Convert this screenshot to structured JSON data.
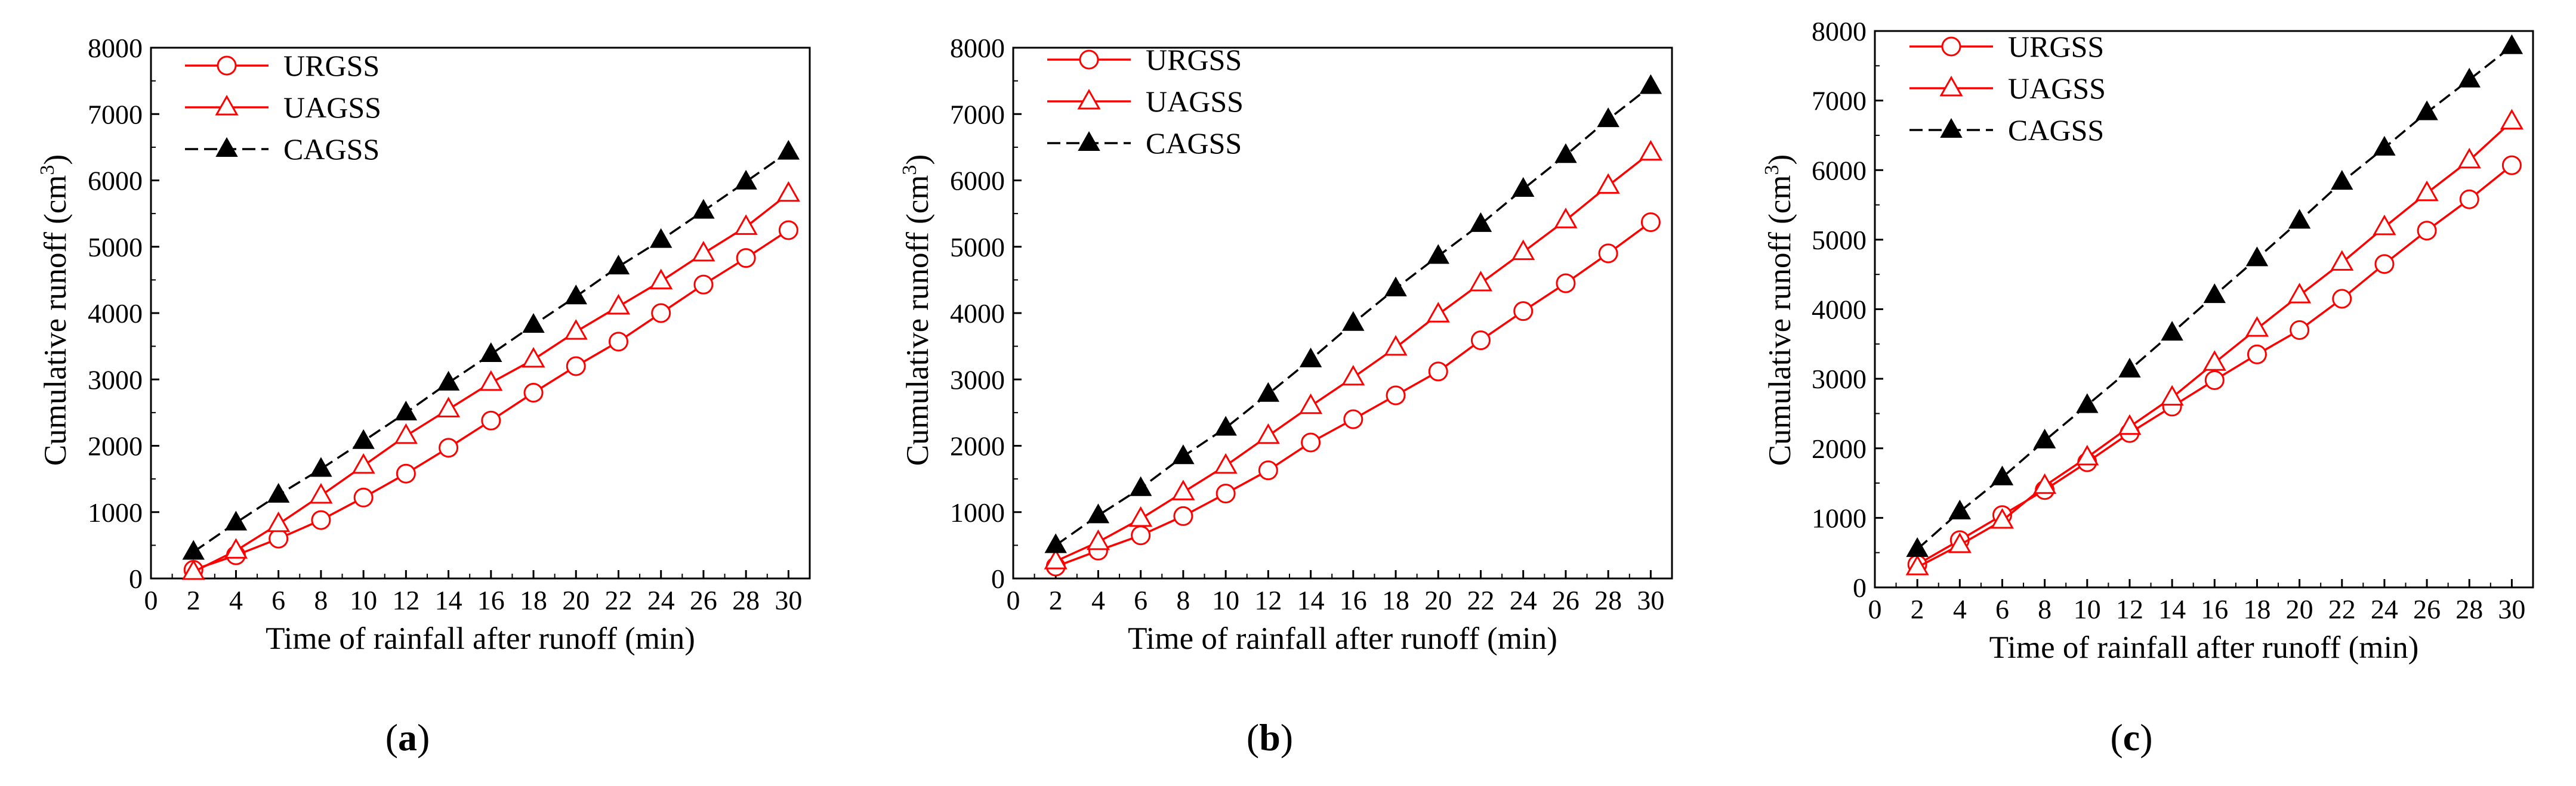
{
  "series_colors": {
    "URGSS": "#ff0000",
    "UAGSS": "#ff0000",
    "CAGSS": "#000000"
  },
  "chart_data": [
    {
      "type": "line",
      "panel": "a",
      "xlabel": "Time of rainfall after runoff (min)",
      "ylabel": "Cumulative runoff (cm",
      "ylabel_sup": "3",
      "ylabel_close": ")",
      "xlim": [
        0,
        31
      ],
      "ylim": [
        0,
        8000
      ],
      "xticks": [
        0,
        2,
        4,
        6,
        8,
        10,
        12,
        14,
        16,
        18,
        20,
        22,
        24,
        26,
        28,
        30
      ],
      "yticks": [
        0,
        1000,
        2000,
        3000,
        4000,
        5000,
        6000,
        7000,
        8000
      ],
      "x": [
        2,
        4,
        6,
        8,
        10,
        12,
        14,
        16,
        18,
        20,
        22,
        24,
        26,
        28,
        30
      ],
      "series": [
        {
          "name": "URGSS",
          "marker": "circle-open",
          "values": [
            130,
            350,
            600,
            880,
            1220,
            1580,
            1970,
            2380,
            2800,
            3200,
            3570,
            4000,
            4430,
            4830,
            5250
          ]
        },
        {
          "name": "UAGSS",
          "marker": "triangle-open",
          "values": [
            100,
            420,
            820,
            1250,
            1700,
            2150,
            2550,
            2950,
            3300,
            3720,
            4100,
            4480,
            4900,
            5300,
            5800
          ]
        },
        {
          "name": "CAGSS",
          "marker": "triangle-filled",
          "values": [
            400,
            840,
            1260,
            1650,
            2070,
            2500,
            2950,
            3380,
            3820,
            4250,
            4700,
            5100,
            5540,
            5980,
            6430
          ]
        }
      ]
    },
    {
      "type": "line",
      "panel": "b",
      "xlabel": "Time of rainfall after runoff (min)",
      "ylabel": "Cumulative runoff (cm",
      "ylabel_sup": "3",
      "ylabel_close": ")",
      "xlim": [
        0,
        31
      ],
      "ylim": [
        0,
        8000
      ],
      "xticks": [
        0,
        2,
        4,
        6,
        8,
        10,
        12,
        14,
        16,
        18,
        20,
        22,
        24,
        26,
        28,
        30
      ],
      "yticks": [
        0,
        1000,
        2000,
        3000,
        4000,
        5000,
        6000,
        7000,
        8000
      ],
      "x": [
        2,
        4,
        6,
        8,
        10,
        12,
        14,
        16,
        18,
        20,
        22,
        24,
        26,
        28,
        30
      ],
      "series": [
        {
          "name": "URGSS",
          "marker": "circle-open",
          "values": [
            180,
            420,
            650,
            940,
            1280,
            1630,
            2050,
            2400,
            2760,
            3120,
            3590,
            4030,
            4450,
            4900,
            5370
          ]
        },
        {
          "name": "UAGSS",
          "marker": "triangle-open",
          "values": [
            260,
            550,
            900,
            1300,
            1700,
            2150,
            2600,
            3030,
            3480,
            3980,
            4450,
            4920,
            5400,
            5920,
            6420
          ]
        },
        {
          "name": "CAGSS",
          "marker": "triangle-filled",
          "values": [
            500,
            950,
            1360,
            1840,
            2270,
            2780,
            3300,
            3850,
            4370,
            4860,
            5340,
            5870,
            6380,
            6920,
            7420
          ]
        }
      ]
    },
    {
      "type": "line",
      "panel": "c",
      "xlabel": "Time of rainfall after runoff (min)",
      "ylabel": "Cumulative runoff (cm",
      "ylabel_sup": "3",
      "ylabel_close": ")",
      "xlim": [
        0,
        31
      ],
      "ylim": [
        0,
        8000
      ],
      "xticks": [
        0,
        2,
        4,
        6,
        8,
        10,
        12,
        14,
        16,
        18,
        20,
        22,
        24,
        26,
        28,
        30
      ],
      "yticks": [
        0,
        1000,
        2000,
        3000,
        4000,
        5000,
        6000,
        7000,
        8000
      ],
      "x": [
        2,
        4,
        6,
        8,
        10,
        12,
        14,
        16,
        18,
        20,
        22,
        24,
        26,
        28,
        30
      ],
      "series": [
        {
          "name": "URGSS",
          "marker": "circle-open",
          "values": [
            330,
            680,
            1040,
            1400,
            1800,
            2220,
            2600,
            2980,
            3350,
            3700,
            4150,
            4650,
            5130,
            5580,
            6070
          ]
        },
        {
          "name": "UAGSS",
          "marker": "triangle-open",
          "values": [
            290,
            610,
            960,
            1460,
            1870,
            2310,
            2730,
            3230,
            3720,
            4200,
            4670,
            5180,
            5670,
            6140,
            6700
          ]
        },
        {
          "name": "CAGSS",
          "marker": "triangle-filled",
          "values": [
            550,
            1090,
            1580,
            2110,
            2620,
            3130,
            3660,
            4200,
            4730,
            5270,
            5830,
            6320,
            6830,
            7300,
            7780
          ]
        }
      ]
    }
  ]
}
